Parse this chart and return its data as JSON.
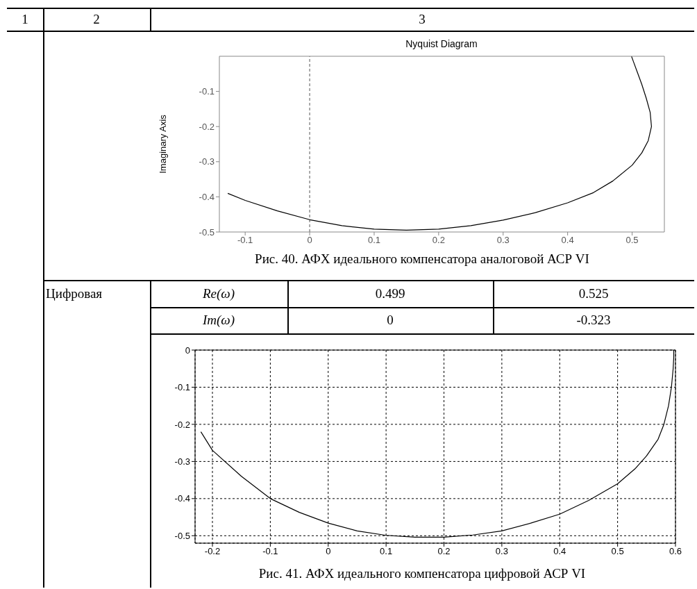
{
  "chart_data": [
    {
      "type": "other",
      "annotations": [
        "1",
        "2",
        "3"
      ]
    },
    {
      "type": "line",
      "title": "Nyquist Diagram",
      "ylabel": "Imaginary Axis",
      "xlim": [
        -0.14,
        0.55
      ],
      "ylim": [
        -0.5,
        0
      ],
      "xticks": [
        -0.1,
        0,
        0.1,
        0.2,
        0.3,
        0.4,
        0.5
      ],
      "yticks": [
        -0.5,
        -0.4,
        -0.3,
        -0.2,
        -0.1
      ],
      "grid": false,
      "line_style": "solid",
      "marker": "none",
      "series": [
        {
          "color": "#000000",
          "x": [
            -0.127,
            -0.1,
            -0.05,
            0,
            0.05,
            0.1,
            0.15,
            0.2,
            0.25,
            0.3,
            0.35,
            0.4,
            0.44,
            0.47,
            0.5,
            0.515,
            0.525,
            0.53,
            0.528,
            0.522,
            0.515,
            0.508,
            0.502,
            0.499
          ],
          "values": [
            -0.39,
            -0.41,
            -0.44,
            -0.465,
            -0.482,
            -0.492,
            -0.495,
            -0.492,
            -0.482,
            -0.466,
            -0.445,
            -0.417,
            -0.388,
            -0.355,
            -0.31,
            -0.275,
            -0.24,
            -0.2,
            -0.16,
            -0.12,
            -0.08,
            -0.045,
            -0.015,
            0
          ]
        }
      ],
      "ref_lines": [
        {
          "axis": "x",
          "value": 0,
          "color": "#555555",
          "line_style": "dashed"
        }
      ],
      "annotations": [
        "Рис. 40. АФХ идеального компенсатора аналоговой АСР VI"
      ]
    },
    {
      "type": "other",
      "annotations": [
        "Цифровая",
        "Re(ω)",
        "0.499",
        "0.525",
        "Im(ω)",
        "0",
        "-0.323"
      ]
    },
    {
      "type": "line",
      "xlim": [
        -0.23,
        0.6
      ],
      "ylim": [
        -0.52,
        0
      ],
      "xticks": [
        -0.2,
        -0.1,
        0,
        0.1,
        0.2,
        0.3,
        0.4,
        0.5,
        0.6
      ],
      "yticks": [
        -0.5,
        -0.4,
        -0.3,
        -0.2,
        -0.1,
        0
      ],
      "grid": true,
      "line_style": "solid",
      "marker": "none",
      "series": [
        {
          "color": "#000000",
          "x": [
            -0.22,
            -0.2,
            -0.15,
            -0.1,
            -0.05,
            0,
            0.05,
            0.1,
            0.15,
            0.2,
            0.25,
            0.3,
            0.35,
            0.4,
            0.45,
            0.5,
            0.53,
            0.55,
            0.57,
            0.58,
            0.588,
            0.593,
            0.596,
            0.597,
            0.597
          ],
          "values": [
            -0.22,
            -0.27,
            -0.34,
            -0.4,
            -0.437,
            -0.466,
            -0.487,
            -0.499,
            -0.504,
            -0.504,
            -0.498,
            -0.487,
            -0.466,
            -0.442,
            -0.405,
            -0.36,
            -0.32,
            -0.285,
            -0.24,
            -0.2,
            -0.15,
            -0.1,
            -0.05,
            -0.02,
            0
          ]
        }
      ],
      "annotations": [
        "Рис. 41. АФХ идеального компенсатора цифровой АСР VI"
      ]
    }
  ]
}
